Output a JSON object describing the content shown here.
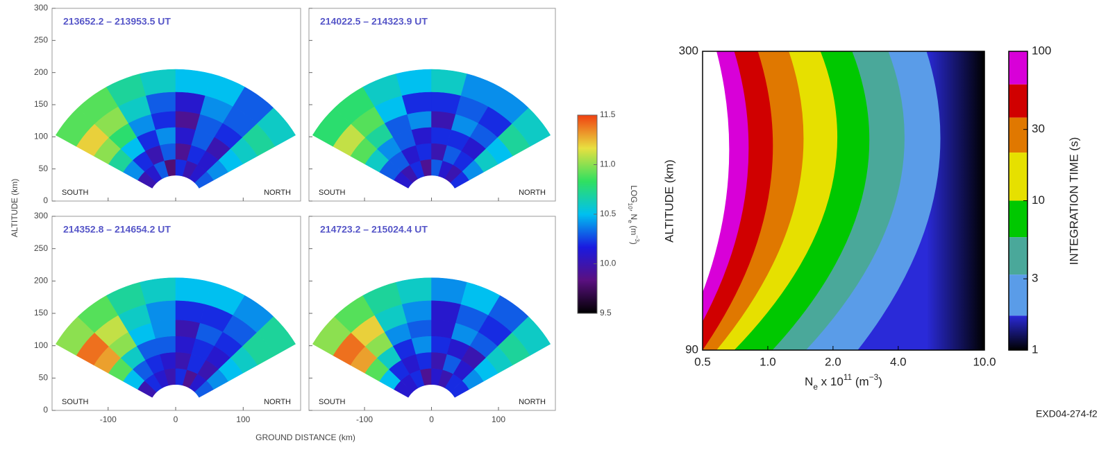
{
  "chart_data": [
    {
      "type": "fan",
      "xlabel": "GROUND DISTANCE (km)",
      "ylabel": "ALTITUDE (km)",
      "xlim": [
        -183,
        185
      ],
      "ylim": [
        0,
        300
      ],
      "xticks": [
        -100,
        0,
        100
      ],
      "yticks": [
        0,
        50,
        100,
        150,
        200,
        250,
        300
      ],
      "ranges": [
        40,
        65,
        90,
        115,
        140,
        170,
        205
      ],
      "angles": [
        150,
        135,
        120,
        105,
        90,
        75,
        60,
        45,
        30
      ],
      "panels": [
        {
          "title": "213652.2 – 213953.5 UT",
          "left": "SOUTH",
          "right": "NORTH",
          "values": [
            [
              10.0,
              10.1,
              10.3,
              9.8,
              10.2,
              10.0,
              10.1,
              10.3
            ],
            [
              10.4,
              10.2,
              10.0,
              10.3,
              9.9,
              10.2,
              10.1,
              10.4
            ],
            [
              10.7,
              10.5,
              10.2,
              10.4,
              10.1,
              10.3,
              10.0,
              10.5
            ],
            [
              11.0,
              10.8,
              10.4,
              10.2,
              9.9,
              10.3,
              10.2,
              10.6
            ],
            [
              11.2,
              11.0,
              10.6,
              10.3,
              10.1,
              10.4,
              10.3,
              10.7
            ],
            [
              10.9,
              10.9,
              10.7,
              10.6,
              10.5,
              10.5,
              10.3,
              10.6
            ]
          ]
        },
        {
          "title": "214022.5 – 214323.9 UT",
          "left": "SOUTH",
          "right": "NORTH",
          "values": [
            [
              10.1,
              10.0,
              10.2,
              9.9,
              10.3,
              10.1,
              10.0,
              10.2
            ],
            [
              10.3,
              10.3,
              10.1,
              10.2,
              10.0,
              10.3,
              10.2,
              10.4
            ],
            [
              10.6,
              10.4,
              10.3,
              10.1,
              10.2,
              10.2,
              10.1,
              10.6
            ],
            [
              10.9,
              10.7,
              10.3,
              10.4,
              10.0,
              10.4,
              10.3,
              10.5
            ],
            [
              11.1,
              10.9,
              10.5,
              10.2,
              10.2,
              10.3,
              10.2,
              10.7
            ],
            [
              10.8,
              10.8,
              10.6,
              10.5,
              10.6,
              10.4,
              10.4,
              10.6
            ]
          ]
        },
        {
          "title": "214352.8 – 214654.2 UT",
          "left": "SOUTH",
          "right": "NORTH",
          "values": [
            [
              10.0,
              10.2,
              10.1,
              10.0,
              10.2,
              9.9,
              10.1,
              10.3
            ],
            [
              10.5,
              10.3,
              10.2,
              10.1,
              10.0,
              10.2,
              10.0,
              10.4
            ],
            [
              10.9,
              10.6,
              10.3,
              10.3,
              10.1,
              10.2,
              10.1,
              10.5
            ],
            [
              11.3,
              11.0,
              10.5,
              10.4,
              10.0,
              10.3,
              10.2,
              10.6
            ],
            [
              11.4,
              11.1,
              10.6,
              10.4,
              10.2,
              10.2,
              10.3,
              10.7
            ],
            [
              11.0,
              10.9,
              10.7,
              10.6,
              10.5,
              10.5,
              10.4,
              10.7
            ]
          ]
        },
        {
          "title": "214723.2 – 215024.4 UT",
          "left": "SOUTH",
          "right": "NORTH",
          "values": [
            [
              10.1,
              10.1,
              10.2,
              9.9,
              10.1,
              10.0,
              10.2,
              10.2
            ],
            [
              10.5,
              10.2,
              10.1,
              10.2,
              10.0,
              10.3,
              10.1,
              10.4
            ],
            [
              10.9,
              10.6,
              10.2,
              10.4,
              10.2,
              10.1,
              10.0,
              10.5
            ],
            [
              11.3,
              11.0,
              10.4,
              10.3,
              10.1,
              10.4,
              10.3,
              10.6
            ],
            [
              11.4,
              11.2,
              10.6,
              10.4,
              10.1,
              10.3,
              10.2,
              10.7
            ],
            [
              11.0,
              10.9,
              10.7,
              10.6,
              10.4,
              10.5,
              10.3,
              10.6
            ]
          ]
        }
      ],
      "colorbar": {
        "label": [
          {
            "text": "LOG"
          },
          {
            "text": "10",
            "shift": "sub"
          },
          {
            "text": ", N"
          },
          {
            "text": "e",
            "shift": "sub"
          },
          {
            "text": " (m"
          },
          {
            "text": "−3",
            "shift": "super"
          },
          {
            "text": ")"
          }
        ],
        "lim": [
          9.5,
          11.5
        ],
        "ticks": [
          9.5,
          {
            "value": 10,
            "label": "10.0"
          },
          10.5,
          {
            "value": 11,
            "label": "11.0"
          },
          11.5
        ],
        "colormap": [
          "#000000",
          "#5a1080",
          "#1a1ae0",
          "#00c0f0",
          "#30e060",
          "#e8e040",
          "#f04010"
        ]
      }
    },
    {
      "type": "contour",
      "ylabel": "ALTITUDE (km)",
      "xlabel": [
        {
          "text": "N"
        },
        {
          "text": "e",
          "shift": "sub"
        },
        {
          "text": " x 10"
        },
        {
          "text": "11",
          "shift": "super"
        },
        {
          "text": " (m"
        },
        {
          "text": "−3",
          "shift": "super"
        },
        {
          "text": ")"
        }
      ],
      "log_x": true,
      "xlim": [
        0.5,
        10
      ],
      "xticks": [
        0.5,
        {
          "value": 1,
          "label": "1.0"
        },
        {
          "value": 2,
          "label": "2.0"
        },
        {
          "value": 4,
          "label": "4.0"
        },
        {
          "value": 10,
          "label": "10.0"
        }
      ],
      "ylim": [
        90,
        300
      ],
      "yticks": [
        90,
        300
      ],
      "y": [
        90,
        195,
        300
      ],
      "contours": [
        {
          "level": 100,
          "x": [
            0.38,
            0.64,
            0.58
          ],
          "color": "#d800d8"
        },
        {
          "level": 60,
          "x": [
            0.42,
            0.78,
            0.7
          ],
          "color": "#d00000"
        },
        {
          "level": 36,
          "x": [
            0.5,
            1.0,
            0.9
          ],
          "color": "#e07800"
        },
        {
          "level": 21,
          "x": [
            0.58,
            1.35,
            1.25
          ],
          "color": "#e6e000"
        },
        {
          "level": 10,
          "x": [
            0.7,
            1.9,
            1.75
          ],
          "color": "#00c800"
        },
        {
          "level": 5.7,
          "x": [
            1.05,
            2.7,
            2.45
          ],
          "color": "#4aa89a"
        },
        {
          "level": 3.2,
          "x": [
            1.5,
            3.9,
            3.6
          ],
          "color": "#5a9ce8"
        },
        {
          "level": 1.7,
          "x": [
            2.6,
            5.8,
            5.4
          ],
          "color": "#2a2ad8"
        }
      ],
      "end_color": "#000000",
      "colorbar": {
        "label": "INTEGRATION TIME (s)",
        "lim": [
          1,
          100
        ],
        "ticks": [
          1,
          3,
          10,
          30,
          100
        ],
        "log": true
      },
      "annotation": "EXD04-274-f2"
    }
  ]
}
